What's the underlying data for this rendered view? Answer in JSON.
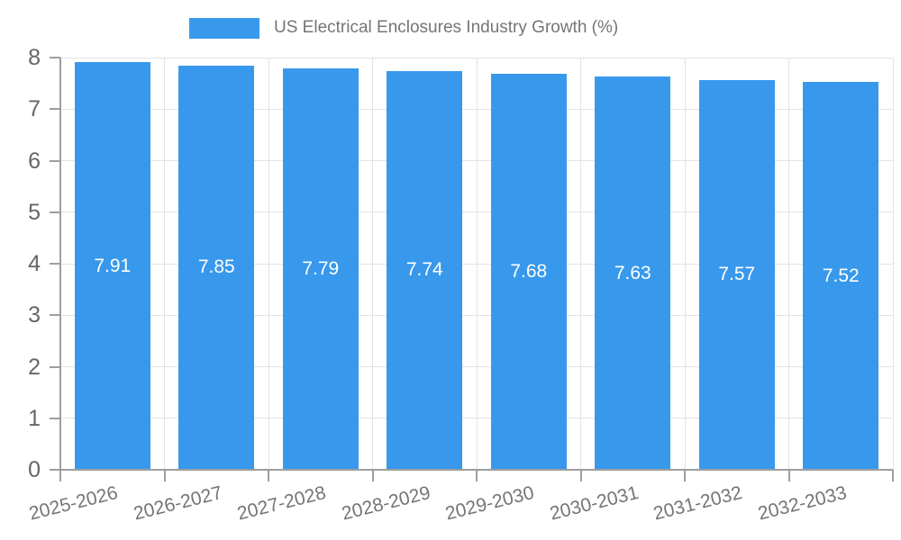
{
  "chart_data": {
    "type": "bar",
    "title": "US Electrical Enclosures Industry Growth (%)",
    "legend": {
      "position": "top",
      "label": "US Electrical Enclosures Industry Growth (%)"
    },
    "categories": [
      "2025-2026",
      "2026-2027",
      "2027-2028",
      "2028-2029",
      "2029-2030",
      "2030-2031",
      "2031-2032",
      "2032-2033"
    ],
    "values": [
      7.91,
      7.85,
      7.79,
      7.74,
      7.68,
      7.63,
      7.57,
      7.52
    ],
    "value_labels": [
      "7.91",
      "7.85",
      "7.79",
      "7.74",
      "7.68",
      "7.63",
      "7.57",
      "7.52"
    ],
    "xlabel": "",
    "ylabel": "",
    "ylim": [
      0,
      8
    ],
    "yticks": [
      0,
      1,
      2,
      3,
      4,
      5,
      6,
      7,
      8
    ],
    "grid": true,
    "colors": {
      "bar": "#3899ec",
      "grid": "#e3e3e3",
      "axis": "#9e9e9e",
      "y_tick_text": "#666666",
      "x_tick_text": "#757575",
      "value_label_text": "#ffffff",
      "legend_text": "#757575",
      "background": "#ffffff"
    }
  }
}
